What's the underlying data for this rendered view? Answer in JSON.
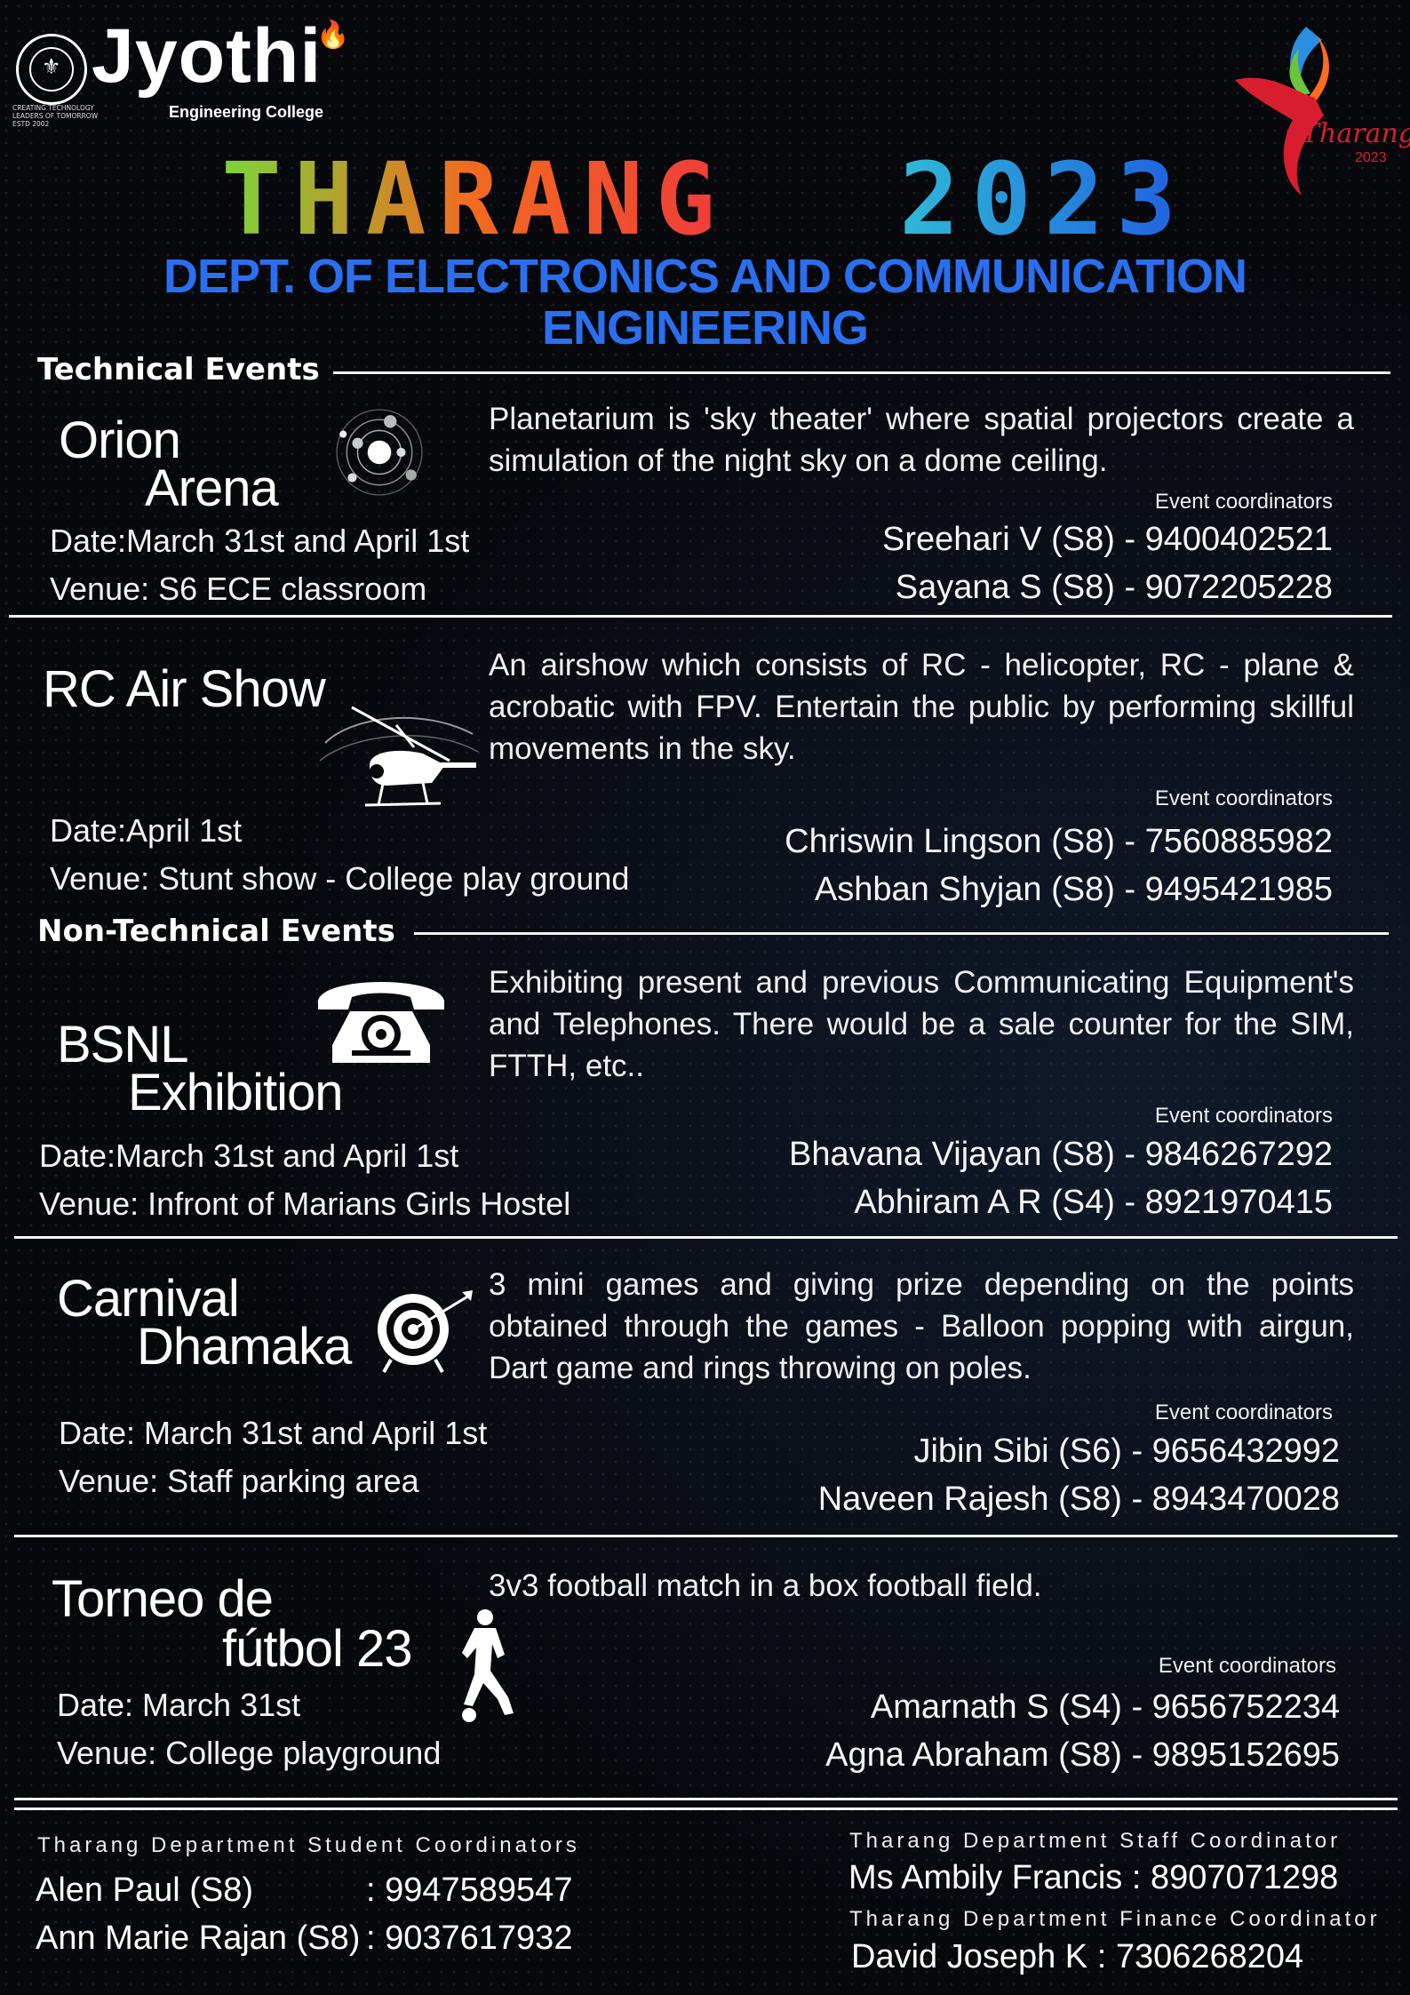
{
  "header": {
    "college_name": "Jyothi",
    "college_sub": "Engineering College",
    "seal_caption": [
      "CREATING TECHNOLOGY",
      "LEADERS OF TOMORROW",
      "ESTD 2002"
    ],
    "fest_logo_text": "Tharang",
    "fest_logo_year": "2023",
    "title_word1": "THARANG",
    "title_word2": "2023",
    "department_line1": "DEPT. OF ELECTRONICS AND COMMUNICATION",
    "department_line2": "ENGINEERING",
    "colors": {
      "title_grad": [
        "#7bd43a",
        "#f26a1f",
        "#ef3b3b"
      ],
      "year_grad": [
        "#2fb9d6",
        "#1f5fe0"
      ],
      "dept": "#2a6ff0"
    }
  },
  "sections": {
    "technical": "Technical Events",
    "non_technical": "Non-Technical Events"
  },
  "events": [
    {
      "name_line1": "Orion",
      "name_line2": "Arena",
      "icon": "planet-system-icon",
      "description": "Planetarium is 'sky theater' where spatial projectors create a simulation of the night sky on a dome ceiling.",
      "coord_heading": "Event coordinators",
      "date": "Date:March 31st and April 1st",
      "venue": "Venue: S6 ECE classroom",
      "coordinators": [
        "Sreehari V (S8) - 9400402521",
        "Sayana S (S8) - 9072205228"
      ]
    },
    {
      "name_line1": "RC Air Show",
      "icon": "helicopter-icon",
      "description": "An airshow which consists of RC - helicopter, RC - plane & acrobatic with FPV. Entertain the public by performing skillful movements in the sky.",
      "coord_heading": "Event coordinators",
      "date": "Date:April 1st",
      "venue": "Venue: Stunt show - College play ground",
      "coordinators": [
        "Chriswin Lingson (S8) - 7560885982",
        "Ashban Shyjan (S8) - 9495421985"
      ]
    },
    {
      "name_line1": "BSNL",
      "name_line2": "Exhibition",
      "icon": "telephone-icon",
      "description": "Exhibiting present and previous Communicating Equipment's and Telephones. There would be a sale counter for the SIM, FTTH, etc..",
      "coord_heading": "Event coordinators",
      "date": "Date:March 31st and April 1st",
      "venue": "Venue: Infront of Marians Girls Hostel",
      "coordinators": [
        "Bhavana Vijayan (S8) - 9846267292",
        "Abhiram A R (S4) - 8921970415"
      ]
    },
    {
      "name_line1": "Carnival",
      "name_line2": "Dhamaka",
      "icon": "dartboard-icon",
      "description": "3 mini games and giving prize depending on the points obtained through the games - Balloon popping with airgun, Dart game and rings throwing on poles.",
      "coord_heading": "Event coordinators",
      "date": "Date: March 31st and April 1st",
      "venue": "Venue: Staff parking area",
      "coordinators": [
        "Jibin Sibi (S6) - 9656432992",
        "Naveen Rajesh (S8) - 8943470028"
      ]
    },
    {
      "name_line1": "Torneo de",
      "name_line2": "fútbol 23",
      "icon": "football-player-icon",
      "description": "3v3 football match in a box football field.",
      "coord_heading": "Event coordinators",
      "date": "Date: March 31st",
      "venue": "Venue: College playground",
      "coordinators": [
        "Amarnath S (S4) - 9656752234",
        "Agna Abraham (S8) - 9895152695"
      ]
    }
  ],
  "footer": {
    "student_heading": "Tharang Department Student Coordinators",
    "students": [
      {
        "name": "Alen Paul (S8)",
        "phone": ": 9947589547"
      },
      {
        "name": "Ann Marie Rajan (S8)",
        "phone": ": 9037617932"
      }
    ],
    "staff_heading": "Tharang Department Staff Coordinator",
    "staff": "Ms Ambily Francis : 8907071298",
    "finance_heading": "Tharang Department Finance Coordinator",
    "finance": "David Joseph K : 7306268204"
  }
}
